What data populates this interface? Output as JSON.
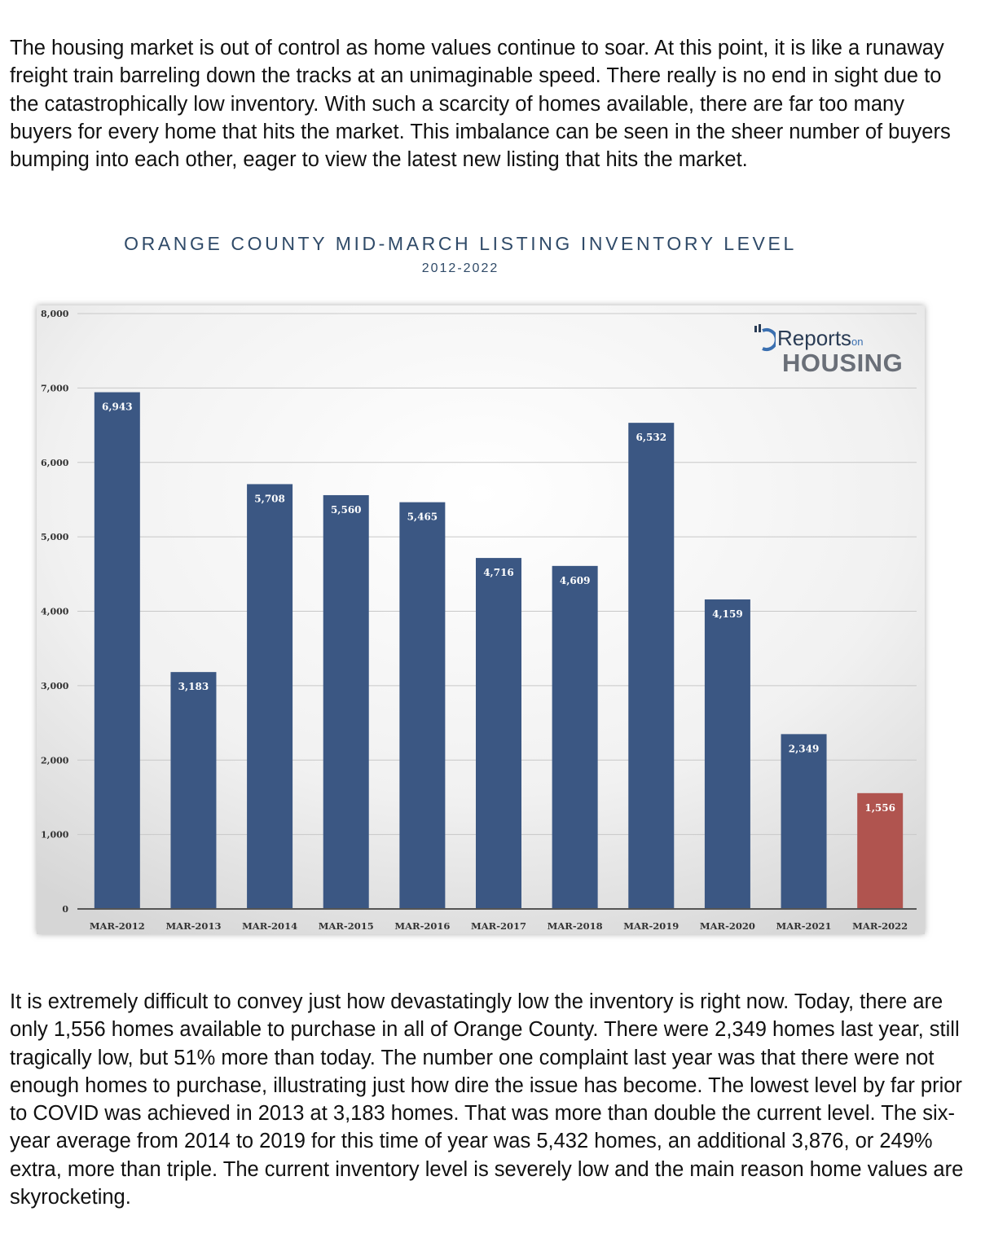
{
  "article": {
    "para1": "The housing market is out of control as home values continue to soar. At this point, it is like a runaway freight train barreling down the tracks at an unimaginable speed. There really is no end in sight due to the catastrophically low inventory. With such a scarcity of homes available, there are far too many buyers for every home that hits the market. This imbalance can be seen in the sheer number of buyers bumping into each other, eager to view the latest new listing that hits the market.",
    "para2": "It is extremely difficult to convey just how devastatingly low the inventory is right now. Today, there are only 1,556 homes available to purchase in all of Orange County. There were 2,349 homes last year, still tragically low, but 51% more than today. The number one complaint last year was that there were not enough homes to purchase, illustrating just how dire the issue has become. The lowest level by far prior to COVID was achieved in 2013 at 3,183 homes. That was more than double the current level. The six-year average from 2014 to 2019 for this time of year was 5,432 homes, an additional 3,876, or 249% extra, more than triple. The current inventory level is severely low and the main reason home values are skyrocketing."
  },
  "logo": {
    "line1": "Reports",
    "line1_small": "on",
    "line2": "HOUSING"
  },
  "chart_data": {
    "type": "bar",
    "title": "ORANGE COUNTY MID-MARCH LISTING INVENTORY LEVEL",
    "subtitle": "2012-2022",
    "categories": [
      "MAR-2012",
      "MAR-2013",
      "MAR-2014",
      "MAR-2015",
      "MAR-2016",
      "MAR-2017",
      "MAR-2018",
      "MAR-2019",
      "MAR-2020",
      "MAR-2021",
      "MAR-2022"
    ],
    "values": [
      6943,
      3183,
      5708,
      5560,
      5465,
      4716,
      4609,
      6532,
      4159,
      2349,
      1556
    ],
    "value_labels": [
      "6,943",
      "3,183",
      "5,708",
      "5,560",
      "5,465",
      "4,716",
      "4,609",
      "6,532",
      "4,159",
      "2,349",
      "1,556"
    ],
    "y_ticks": [
      0,
      1000,
      2000,
      3000,
      4000,
      5000,
      6000,
      7000,
      8000
    ],
    "y_tick_labels": [
      "0",
      "1,000",
      "2,000",
      "3,000",
      "4,000",
      "5,000",
      "6,000",
      "7,000",
      "8,000"
    ],
    "ylim": [
      0,
      8000
    ],
    "grid": true,
    "colors": {
      "bar": "#3b5783",
      "highlight": "#b0544f",
      "highlight_index": 10
    },
    "xlabel": "",
    "ylabel": ""
  }
}
